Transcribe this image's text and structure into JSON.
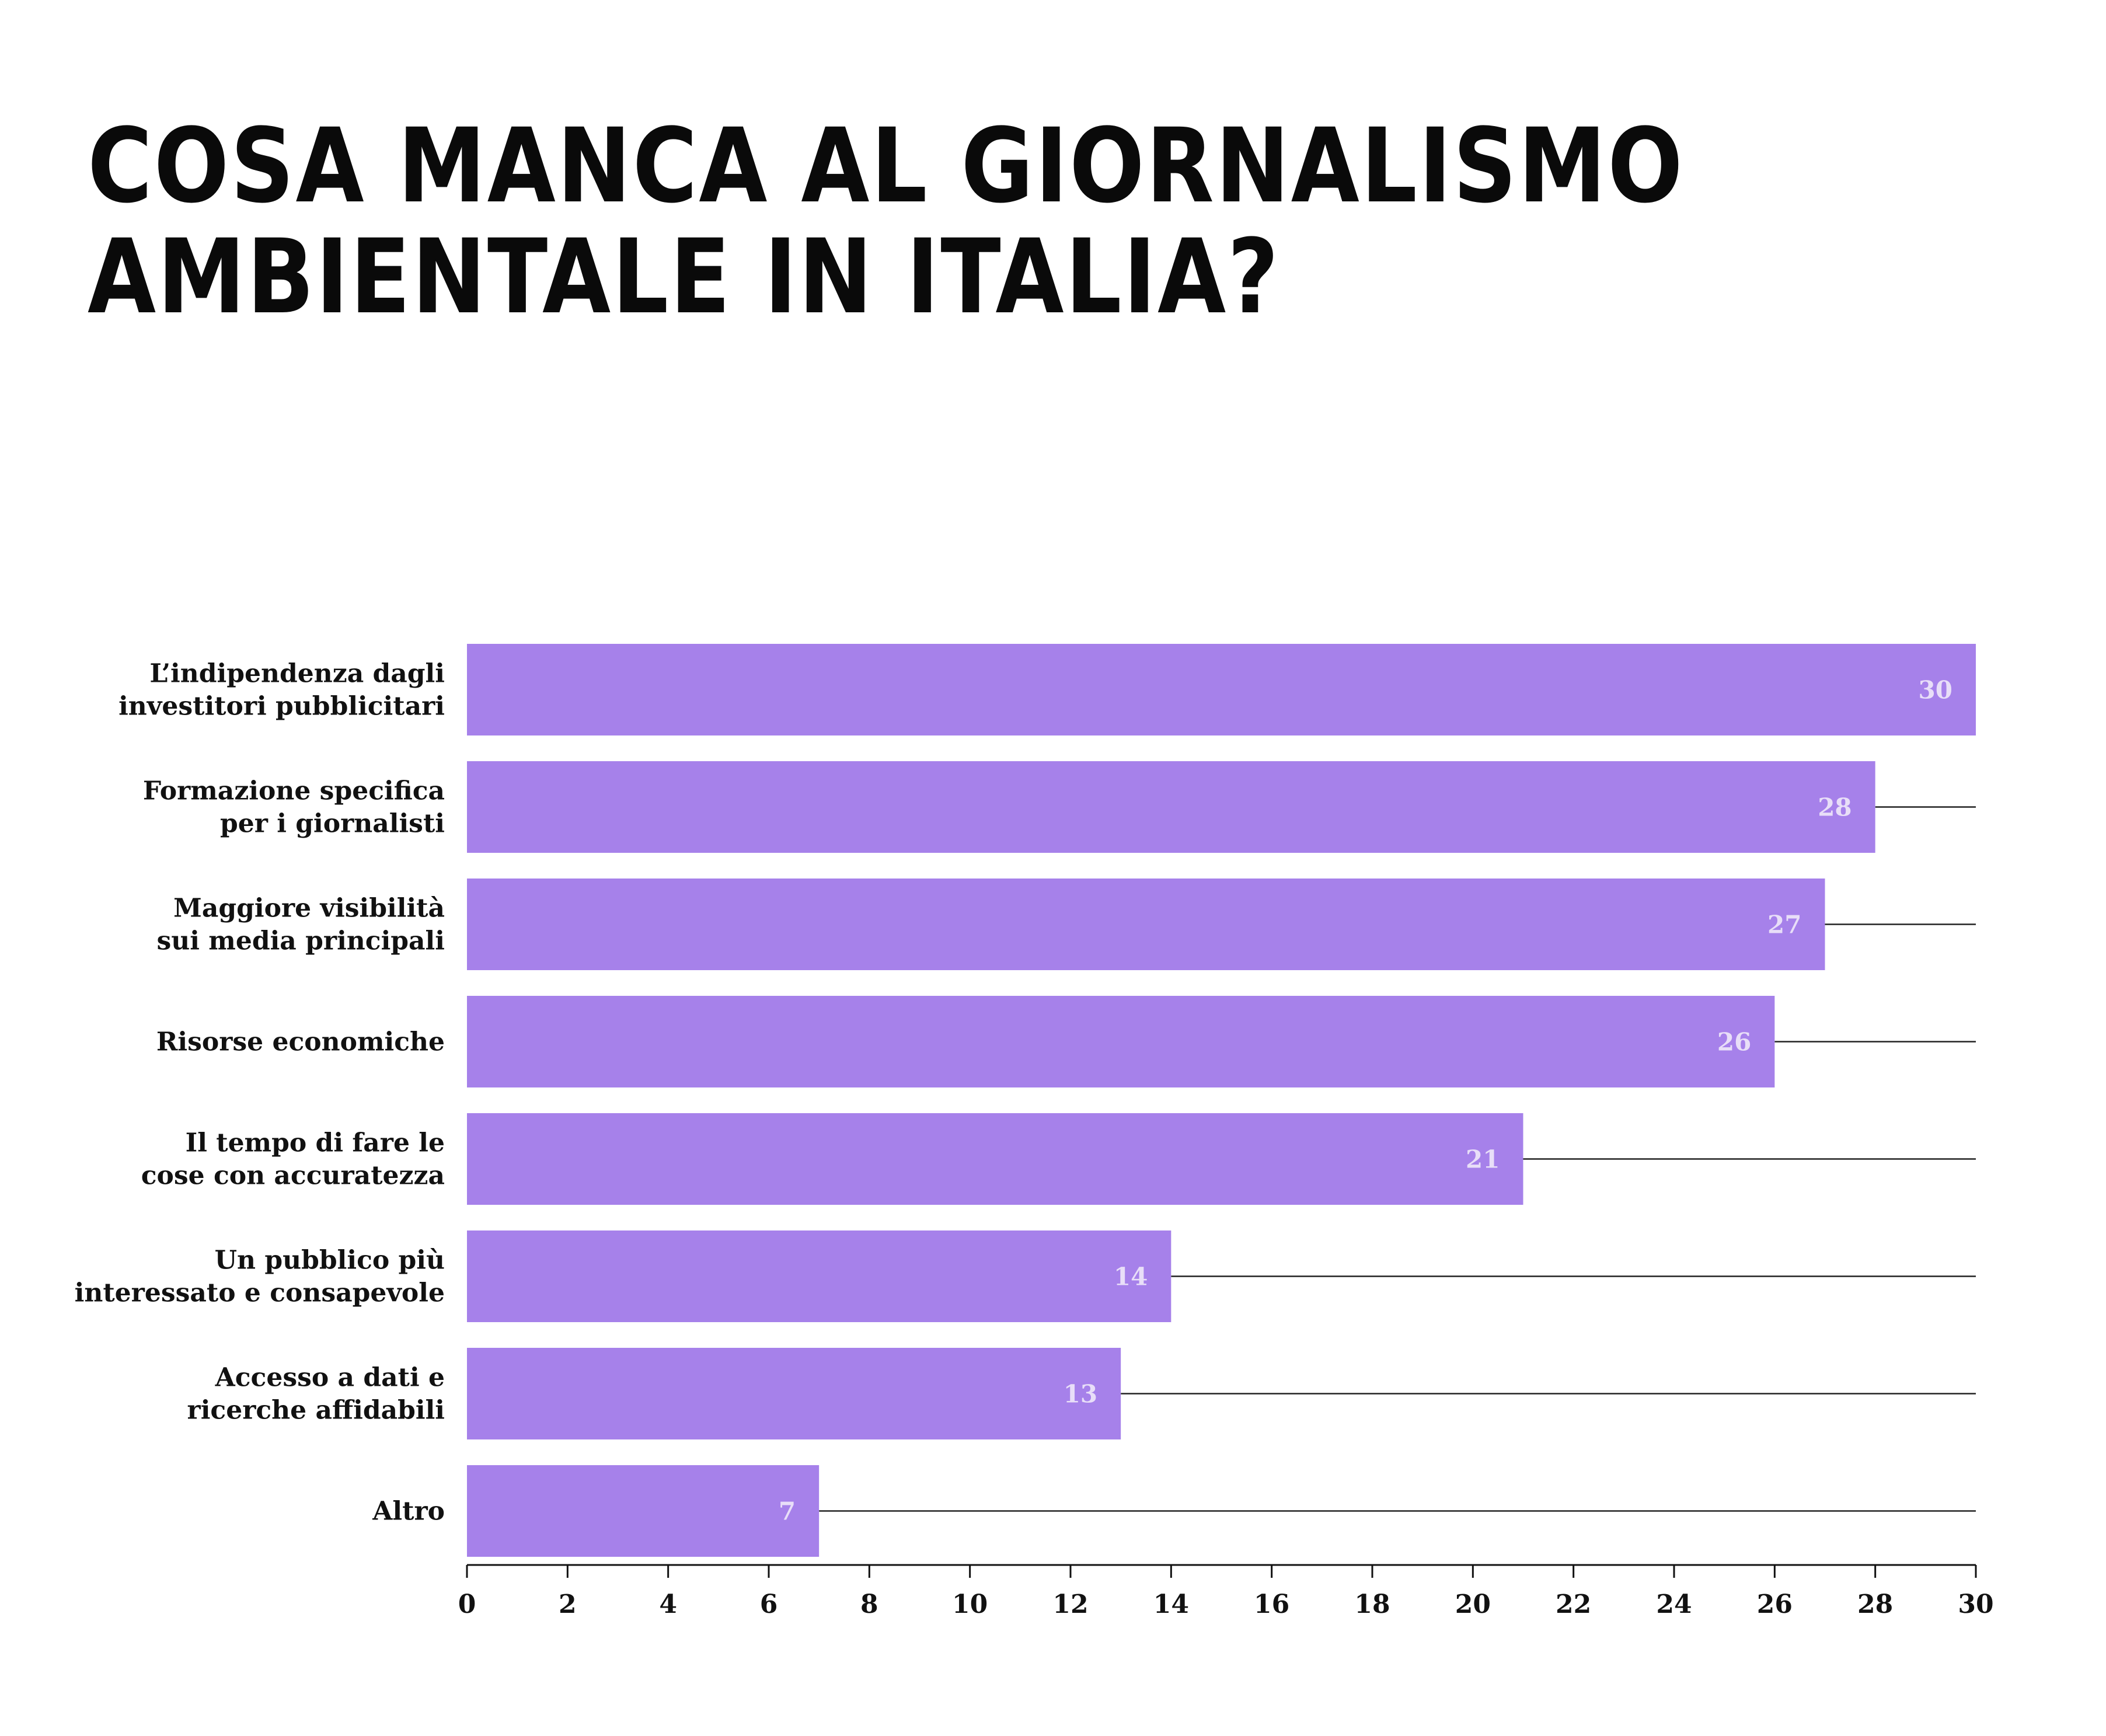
{
  "title_lines": [
    "COSA MANCA AL GIORNALISMO",
    "AMBIENTALE IN ITALIA?"
  ],
  "colors": {
    "bar": "#a681ea",
    "value_label": "#e8def8",
    "guide_line": "#222222",
    "text": "#111111"
  },
  "chart_data": {
    "type": "bar",
    "orientation": "horizontal",
    "title": "COSA MANCA AL GIORNALISMO AMBIENTALE IN ITALIA?",
    "categories": [
      [
        "L’indipendenza dagli",
        "investitori pubblicitari"
      ],
      [
        "Formazione specifica",
        "per i giornalisti"
      ],
      [
        "Maggiore visibilità",
        "sui media principali"
      ],
      [
        "Risorse economiche"
      ],
      [
        "Il tempo di fare le",
        "cose con accuratezza"
      ],
      [
        "Un pubblico più",
        "interessato e consapevole"
      ],
      [
        "Accesso a dati e",
        "ricerche affidabili"
      ],
      [
        "Altro"
      ]
    ],
    "values": [
      30,
      28,
      27,
      26,
      21,
      14,
      13,
      7
    ],
    "value_labels": [
      "30",
      "28",
      "27",
      "26",
      "21",
      "14",
      "13",
      "7"
    ],
    "xlim": [
      0,
      30
    ],
    "xticks": [
      0,
      2,
      4,
      6,
      8,
      10,
      12,
      14,
      16,
      18,
      20,
      22,
      24,
      26,
      28,
      30
    ],
    "xlabel": "",
    "ylabel": "",
    "grid": false,
    "legend": "none"
  }
}
